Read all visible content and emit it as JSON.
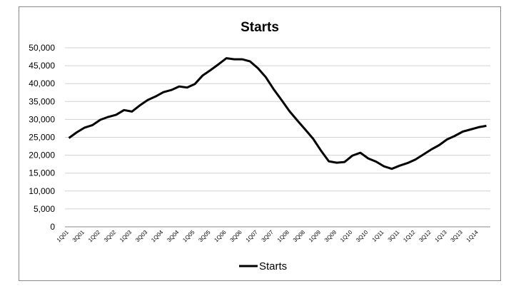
{
  "chart_data": {
    "type": "line",
    "title": "Starts",
    "xlabel": "",
    "ylabel": "",
    "ylim": [
      0,
      50000
    ],
    "yticks": [
      0,
      5000,
      10000,
      15000,
      20000,
      25000,
      30000,
      35000,
      40000,
      45000,
      50000
    ],
    "ytick_labels": [
      "0",
      "5,000",
      "10,000",
      "15,000",
      "20,000",
      "25,000",
      "30,000",
      "35,000",
      "40,000",
      "45,000",
      "50,000"
    ],
    "grid": true,
    "legend_position": "bottom",
    "x_tick_labels": [
      "1Q01",
      "3Q01",
      "1Q02",
      "3Q02",
      "1Q03",
      "3Q03",
      "1Q04",
      "3Q04",
      "1Q05",
      "3Q05",
      "1Q06",
      "3Q06",
      "1Q07",
      "3Q07",
      "1Q08",
      "3Q08",
      "1Q09",
      "3Q09",
      "1Q10",
      "3Q10",
      "1Q11",
      "3Q11",
      "1Q12",
      "3Q12",
      "1Q13",
      "3Q13",
      "1Q14"
    ],
    "categories": [
      "1Q01",
      "2Q01",
      "3Q01",
      "4Q01",
      "1Q02",
      "2Q02",
      "3Q02",
      "4Q02",
      "1Q03",
      "2Q03",
      "3Q03",
      "4Q03",
      "1Q04",
      "2Q04",
      "3Q04",
      "4Q04",
      "1Q05",
      "2Q05",
      "3Q05",
      "4Q05",
      "1Q06",
      "2Q06",
      "3Q06",
      "4Q06",
      "1Q07",
      "2Q07",
      "3Q07",
      "4Q07",
      "1Q08",
      "2Q08",
      "3Q08",
      "4Q08",
      "1Q09",
      "2Q09",
      "3Q09",
      "4Q09",
      "1Q10",
      "2Q10",
      "3Q10",
      "4Q10",
      "1Q11",
      "2Q11",
      "3Q11",
      "4Q11",
      "1Q12",
      "2Q12",
      "3Q12",
      "4Q12",
      "1Q13",
      "2Q13",
      "3Q13",
      "4Q13",
      "1Q14",
      "2Q14"
    ],
    "series": [
      {
        "name": "Starts",
        "color": "#000000",
        "values": [
          24800,
          26400,
          27700,
          28400,
          29900,
          30700,
          31300,
          32600,
          32200,
          33900,
          35400,
          36400,
          37600,
          38200,
          39200,
          38900,
          39900,
          42300,
          43800,
          45400,
          47100,
          46800,
          46800,
          46200,
          44300,
          41800,
          38400,
          35400,
          32300,
          29700,
          27200,
          24600,
          21300,
          18300,
          17900,
          18100,
          19900,
          20700,
          19100,
          18200,
          16900,
          16200,
          17100,
          17800,
          18800,
          20200,
          21600,
          22800,
          24400,
          25400,
          26600,
          27200,
          27800,
          28200
        ]
      }
    ]
  }
}
